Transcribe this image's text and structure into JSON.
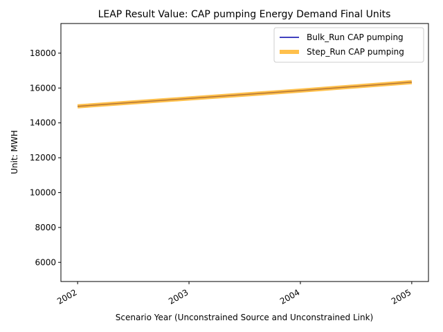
{
  "chart_data": {
    "type": "line",
    "title": "LEAP Result Value: CAP pumping Energy Demand Final Units",
    "xlabel": "Scenario Year (Unconstrained Source and Unconstrained Link)",
    "ylabel": "Unit: MWH",
    "x": [
      2002,
      2003,
      2004,
      2005
    ],
    "x_tick_labels": [
      "2002",
      "2003",
      "2004",
      "2005"
    ],
    "xlim": [
      2001.85,
      2005.15
    ],
    "ylim": [
      4900,
      19700
    ],
    "y_ticks": [
      6000,
      8000,
      10000,
      12000,
      14000,
      16000,
      18000
    ],
    "grid": false,
    "legend_position": "top-right",
    "series": [
      {
        "name": "Bulk_Run CAP pumping",
        "color": "#0000aa",
        "values": [
          14950,
          15400,
          15850,
          16340
        ]
      },
      {
        "name": "Step_Run CAP pumping",
        "color": "#ffa500",
        "values": [
          14950,
          15400,
          15850,
          16340
        ]
      }
    ]
  }
}
